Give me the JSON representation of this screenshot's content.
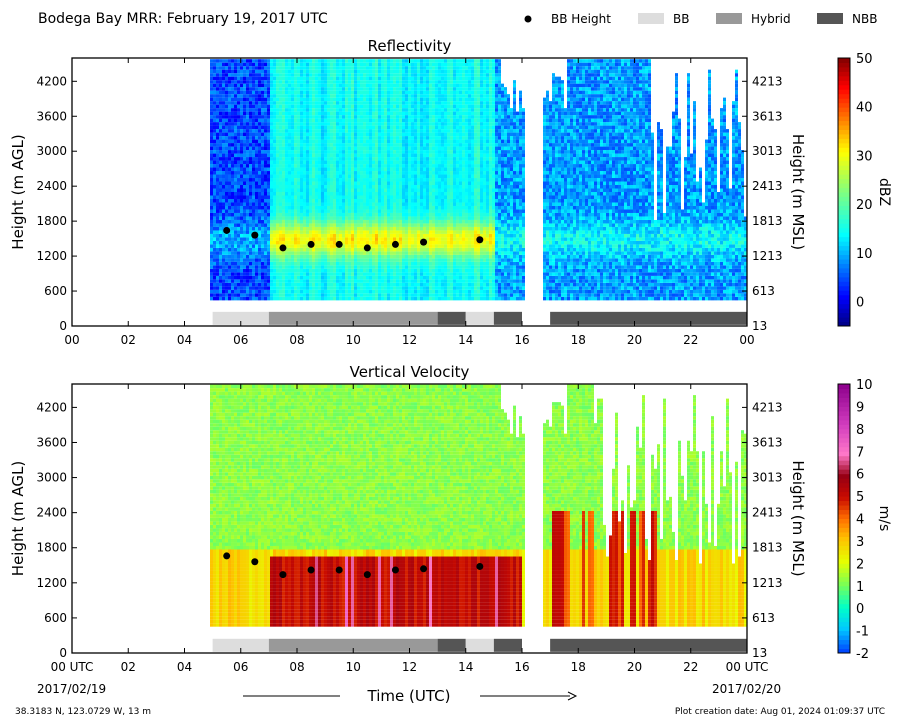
{
  "figure": {
    "title": "Bodega Bay MRR:  February 19, 2017 UTC",
    "legend": [
      {
        "label": "BB Height",
        "kind": "dot",
        "color": "#000000"
      },
      {
        "label": "BB",
        "kind": "swatch",
        "color": "#dddddd"
      },
      {
        "label": "Hybrid",
        "kind": "swatch",
        "color": "#999999"
      },
      {
        "label": "NBB",
        "kind": "swatch",
        "color": "#555555"
      }
    ],
    "footer_left": "38.3183 N, 123.0729 W, 13 m",
    "footer_right": "Plot creation date: Aug 01, 2024 01:09:37 UTC",
    "xaxis_title": "Time (UTC)",
    "start_date": "2017/02/19",
    "end_date": "2017/02/20"
  },
  "chart_data": [
    {
      "type": "heatmap",
      "title": "Reflectivity",
      "ylabel": "Height (m AGL)",
      "ylabel_right": "Height (m MSL)",
      "colorbar_label": "dBZ",
      "x_ticks": [
        "00",
        "02",
        "04",
        "06",
        "08",
        "10",
        "12",
        "14",
        "16",
        "18",
        "20",
        "22",
        "00"
      ],
      "xlim": [
        0,
        24
      ],
      "y_ticks_left": [
        "0",
        "600",
        "1200",
        "1800",
        "2400",
        "3000",
        "3600",
        "4200"
      ],
      "y_ticks_right": [
        "13",
        "613",
        "1213",
        "1813",
        "2413",
        "3013",
        "3613",
        "4213"
      ],
      "ylim": [
        0,
        4600
      ],
      "colorbar_ticks": [
        "0",
        "10",
        "20",
        "30",
        "40",
        "50"
      ],
      "colorbar_range": [
        -5,
        50
      ],
      "bb_height": {
        "x": [
          5.5,
          6.5,
          7.5,
          8.5,
          9.5,
          10.5,
          11.5,
          12.5,
          14.5
        ],
        "y": [
          1640,
          1560,
          1340,
          1400,
          1400,
          1340,
          1400,
          1440,
          1480
        ]
      },
      "bb_type_strip": [
        {
          "start": 5.0,
          "end": 7.0,
          "type": "BB"
        },
        {
          "start": 7.0,
          "end": 13.0,
          "type": "Hybrid"
        },
        {
          "start": 13.0,
          "end": 14.0,
          "type": "NBB"
        },
        {
          "start": 14.0,
          "end": 15.0,
          "type": "BB"
        },
        {
          "start": 15.0,
          "end": 16.0,
          "type": "NBB"
        },
        {
          "start": 17.0,
          "end": 24.0,
          "type": "NBB"
        }
      ]
    },
    {
      "type": "heatmap",
      "title": "Vertical Velocity",
      "ylabel": "Height (m AGL)",
      "ylabel_right": "Height (m MSL)",
      "colorbar_label": "m/s",
      "x_ticks": [
        "00 UTC",
        "02",
        "04",
        "06",
        "08",
        "10",
        "12",
        "14",
        "16",
        "18",
        "20",
        "22",
        "00 UTC"
      ],
      "xlim": [
        0,
        24
      ],
      "y_ticks_left": [
        "0",
        "600",
        "1200",
        "1800",
        "2400",
        "3000",
        "3600",
        "4200"
      ],
      "y_ticks_right": [
        "13",
        "613",
        "1213",
        "1813",
        "2413",
        "3013",
        "3613",
        "4213"
      ],
      "ylim": [
        0,
        4600
      ],
      "colorbar_ticks": [
        "-2",
        "-1",
        "0",
        "1",
        "2",
        "3",
        "4",
        "5",
        "6",
        "7",
        "8",
        "9",
        "10"
      ],
      "colorbar_range": [
        -2,
        10
      ],
      "bb_height": {
        "x": [
          5.5,
          6.5,
          7.5,
          8.5,
          9.5,
          10.5,
          11.5,
          12.5,
          14.5
        ],
        "y": [
          1660,
          1560,
          1340,
          1420,
          1420,
          1340,
          1420,
          1440,
          1480
        ]
      },
      "bb_type_strip": [
        {
          "start": 5.0,
          "end": 7.0,
          "type": "BB"
        },
        {
          "start": 7.0,
          "end": 13.0,
          "type": "Hybrid"
        },
        {
          "start": 13.0,
          "end": 14.0,
          "type": "NBB"
        },
        {
          "start": 14.0,
          "end": 15.0,
          "type": "BB"
        },
        {
          "start": 15.0,
          "end": 16.0,
          "type": "NBB"
        },
        {
          "start": 17.0,
          "end": 24.0,
          "type": "NBB"
        }
      ]
    }
  ]
}
